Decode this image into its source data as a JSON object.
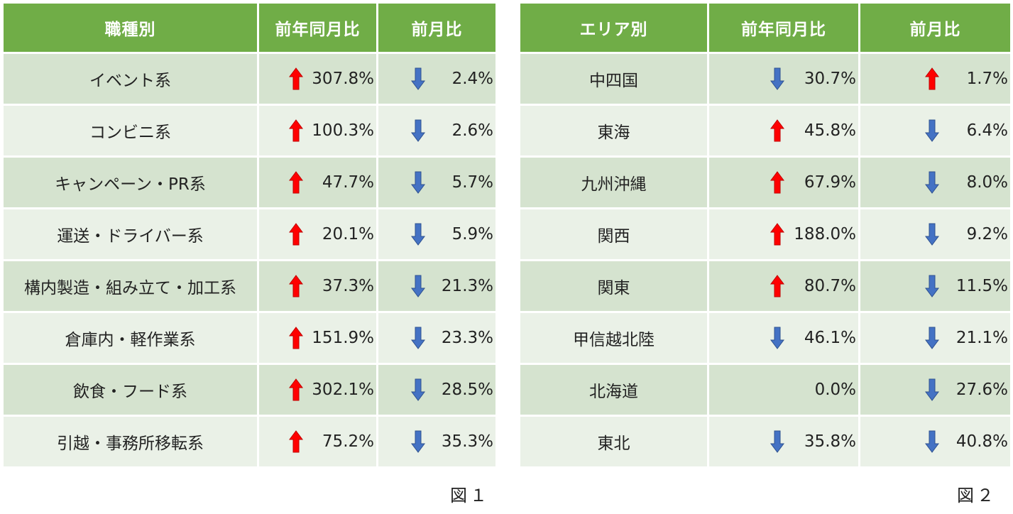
{
  "colors": {
    "header_green": "#70AD47",
    "row_dark": "#D5E3CF",
    "row_light": "#EAF1E7",
    "up_arrow": "#FF0000",
    "down_arrow": "#4472C4"
  },
  "table1": {
    "headers": [
      "職種別",
      "前年同月比",
      "前月比"
    ],
    "rows": [
      {
        "label": "イベント系",
        "yoy": "307.8%",
        "yoy_dir": "up",
        "mom": "2.4%",
        "mom_dir": "down"
      },
      {
        "label": "コンビニ系",
        "yoy": "100.3%",
        "yoy_dir": "up",
        "mom": "2.6%",
        "mom_dir": "down"
      },
      {
        "label": "キャンペーン・PR系",
        "yoy": "47.7%",
        "yoy_dir": "up",
        "mom": "5.7%",
        "mom_dir": "down"
      },
      {
        "label": "運送・ドライバー系",
        "yoy": "20.1%",
        "yoy_dir": "up",
        "mom": "5.9%",
        "mom_dir": "down"
      },
      {
        "label": "構内製造・組み立て・加工系",
        "yoy": "37.3%",
        "yoy_dir": "up",
        "mom": "21.3%",
        "mom_dir": "down"
      },
      {
        "label": "倉庫内・軽作業系",
        "yoy": "151.9%",
        "yoy_dir": "up",
        "mom": "23.3%",
        "mom_dir": "down"
      },
      {
        "label": "飲食・フード系",
        "yoy": "302.1%",
        "yoy_dir": "up",
        "mom": "28.5%",
        "mom_dir": "down"
      },
      {
        "label": "引越・事務所移転系",
        "yoy": "75.2%",
        "yoy_dir": "up",
        "mom": "35.3%",
        "mom_dir": "down"
      }
    ],
    "caption": "図１"
  },
  "table2": {
    "headers": [
      "エリア別",
      "前年同月比",
      "前月比"
    ],
    "rows": [
      {
        "label": "中四国",
        "yoy": "30.7%",
        "yoy_dir": "down",
        "mom": "1.7%",
        "mom_dir": "up"
      },
      {
        "label": "東海",
        "yoy": "45.8%",
        "yoy_dir": "up",
        "mom": "6.4%",
        "mom_dir": "down"
      },
      {
        "label": "九州沖縄",
        "yoy": "67.9%",
        "yoy_dir": "up",
        "mom": "8.0%",
        "mom_dir": "down"
      },
      {
        "label": "関西",
        "yoy": "188.0%",
        "yoy_dir": "up",
        "mom": "9.2%",
        "mom_dir": "down"
      },
      {
        "label": "関東",
        "yoy": "80.7%",
        "yoy_dir": "up",
        "mom": "11.5%",
        "mom_dir": "down"
      },
      {
        "label": "甲信越北陸",
        "yoy": "46.1%",
        "yoy_dir": "down",
        "mom": "21.1%",
        "mom_dir": "down"
      },
      {
        "label": "北海道",
        "yoy": "0.0%",
        "yoy_dir": "none",
        "mom": "27.6%",
        "mom_dir": "down"
      },
      {
        "label": "東北",
        "yoy": "35.8%",
        "yoy_dir": "down",
        "mom": "40.8%",
        "mom_dir": "down"
      }
    ],
    "caption": "図２"
  }
}
